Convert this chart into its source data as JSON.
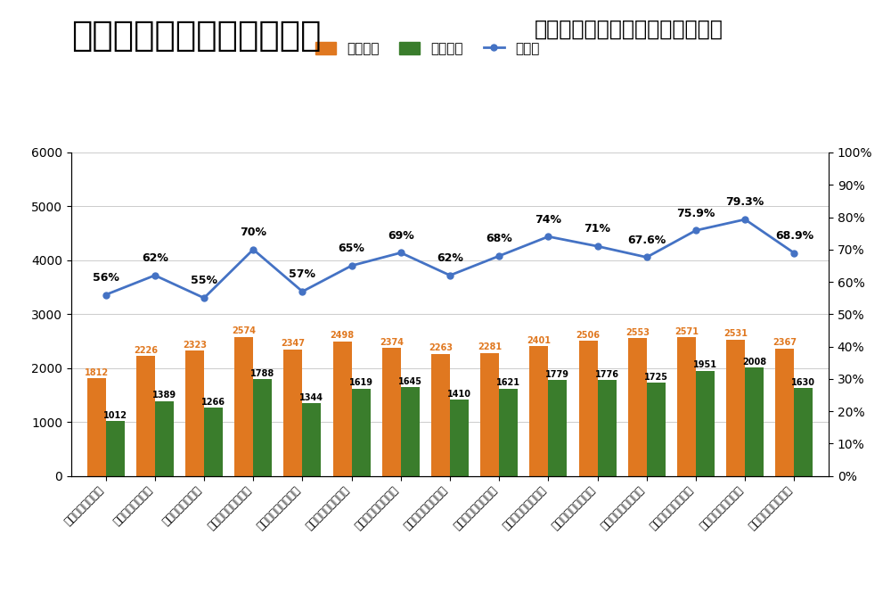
{
  "title_main": "言語聴覚士国家試験の推移",
  "title_sub": "（受験者数・合格者数・合格率）",
  "categories": [
    "平成１７年第７回",
    "平成１８年第８回",
    "平成１９年第９回",
    "平成２０年第１０回",
    "平成２１年第１１回",
    "平成２２年第１２回",
    "平成２３年第１３回",
    "平成２４年第１４回",
    "平成２５年第１５回",
    "平成２６年第１６回",
    "平成２７年第１７回",
    "平成２８年第１８回",
    "平成２９年第１９回",
    "平成３０年第２０回",
    "平成３１年第２１回"
  ],
  "examinees": [
    1812,
    2226,
    2323,
    2574,
    2347,
    2498,
    2374,
    2263,
    2281,
    2401,
    2506,
    2553,
    2571,
    2531,
    2367
  ],
  "passers": [
    1012,
    1389,
    1266,
    1788,
    1344,
    1619,
    1645,
    1410,
    1621,
    1779,
    1776,
    1725,
    1951,
    2008,
    1630
  ],
  "pass_rates": [
    56,
    62,
    55,
    70,
    57,
    65,
    69,
    62,
    68,
    74,
    71,
    67.6,
    75.9,
    79.3,
    68.9
  ],
  "pass_rate_labels": [
    "56%",
    "62%",
    "55%",
    "70%",
    "57%",
    "65%",
    "69%",
    "62%",
    "68%",
    "74%",
    "71%",
    "67.6%",
    "75.9%",
    "79.3%",
    "68.9%"
  ],
  "bar_color_examinees": "#E07820",
  "bar_color_passers": "#3A7D2C",
  "line_color": "#4472C4",
  "background_color": "#FFFFFF",
  "ylim_left": [
    0,
    6000
  ],
  "ylim_right": [
    0,
    100
  ],
  "legend_examinees": "受験者数",
  "legend_passers": "合格者数",
  "legend_rate": "合格率",
  "title_fontsize": 28,
  "subtitle_fontsize": 17
}
